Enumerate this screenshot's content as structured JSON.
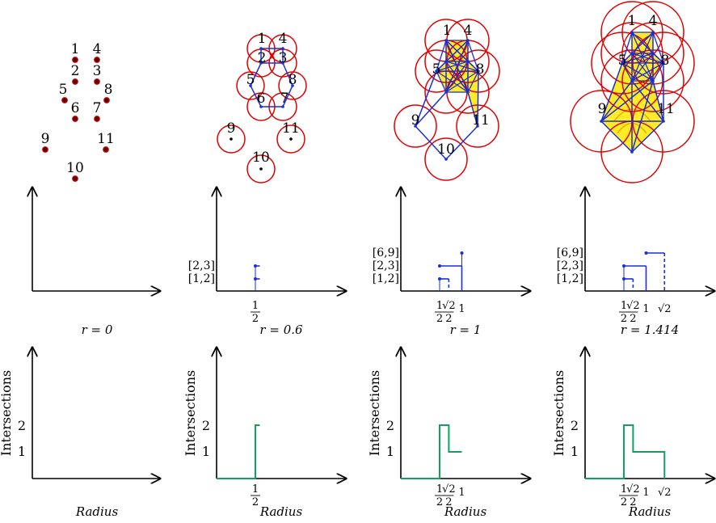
{
  "colors": {
    "point": "#c00000",
    "ball": "#e00000",
    "edge": "#1a2fd6",
    "fill": "#ffe800",
    "barcode": "#1a2fd6",
    "curve": "#12a060",
    "axis": "#000000"
  },
  "point_labels": [
    "1",
    "2",
    "3",
    "4",
    "5",
    "6",
    "7",
    "8",
    "9",
    "10",
    "11"
  ],
  "panels": [
    {
      "radius_label": "r = 0"
    },
    {
      "radius_label": "r = 0.6"
    },
    {
      "radius_label": "r = 1"
    },
    {
      "radius_label": "r = 1.414"
    }
  ],
  "barcode_labels": [
    "[1,2]",
    "[2,3]",
    "[6,9]"
  ],
  "ticks": {
    "half": "1/2",
    "sqrt2_over_2": "√2/2",
    "one": "1",
    "sqrt2": "√2"
  },
  "y_axis_label": "Intersections",
  "y_ticks": [
    "1",
    "2"
  ],
  "x_axis_label": "Radius",
  "chart_data": [
    {
      "type": "line",
      "title": "r = 0",
      "xlabel": "Radius",
      "ylabel": "Intersections",
      "x": [],
      "y": []
    },
    {
      "type": "line",
      "title": "r = 0.6",
      "xlabel": "Radius",
      "ylabel": "Intersections",
      "x": [
        0,
        0.5,
        0.5,
        0.6
      ],
      "y": [
        0,
        0,
        2,
        2
      ]
    },
    {
      "type": "line",
      "title": "r = 1",
      "xlabel": "Radius",
      "ylabel": "Intersections",
      "x": [
        0,
        0.5,
        0.5,
        0.707,
        0.707,
        1
      ],
      "y": [
        0,
        0,
        2,
        2,
        1,
        1
      ]
    },
    {
      "type": "line",
      "title": "r = 1.414",
      "xlabel": "Radius",
      "ylabel": "Intersections",
      "x": [
        0,
        0.5,
        0.5,
        0.707,
        0.707,
        1.414,
        1.414
      ],
      "y": [
        0,
        0,
        2,
        2,
        1,
        1,
        0
      ]
    }
  ]
}
